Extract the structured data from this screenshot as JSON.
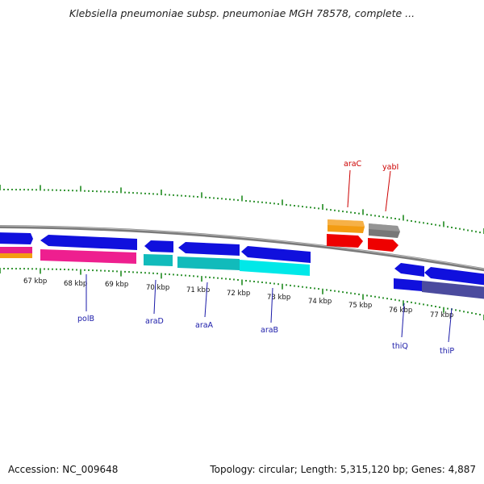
{
  "title": "Klebsiella pneumoniae subsp. pneumoniae MGH 78578, complete ...",
  "footer": {
    "accession": "Accession: NC_009648",
    "summary": "Topology: circular; Length: 5,315,120 bp; Genes: 4,887"
  },
  "colors": {
    "backbone": "#7a7a7a",
    "ticks": "#1f8a1f",
    "forward_label": "#1a1aa8",
    "reverse_label": "#cc0000"
  },
  "scale_labels": [
    "67 kbp",
    "68 kbp",
    "69 kbp",
    "70 kbp",
    "71 kbp",
    "72 kbp",
    "73 kbp",
    "74 kbp",
    "75 kbp",
    "76 kbp",
    "77 kbp"
  ],
  "genes_top": [
    {
      "name": "araC"
    },
    {
      "name": "yabI"
    }
  ],
  "genes_bottom": [
    {
      "name": "polB"
    },
    {
      "name": "araD"
    },
    {
      "name": "araA"
    },
    {
      "name": "araB"
    },
    {
      "name": "thiQ"
    },
    {
      "name": "thiP"
    }
  ]
}
